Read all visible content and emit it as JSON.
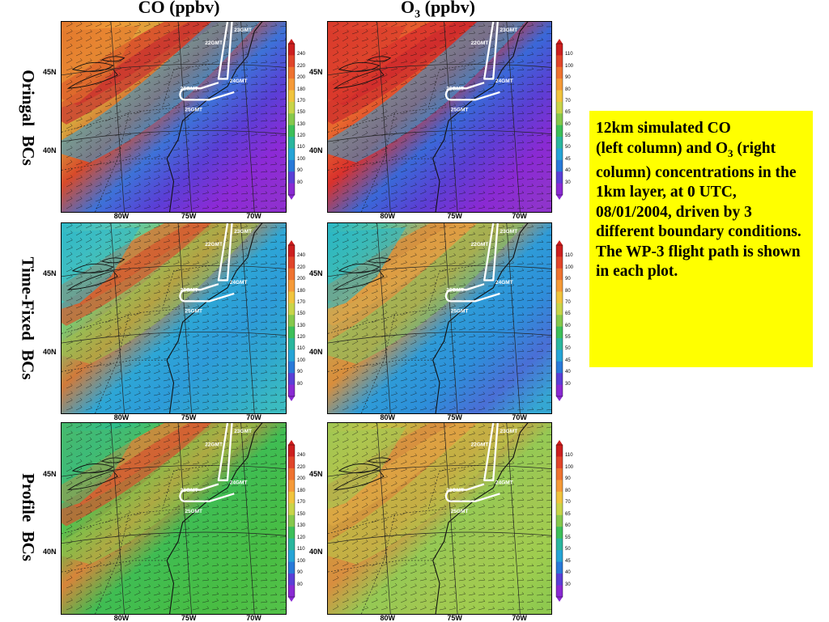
{
  "columns": [
    {
      "label": "CO (ppbv)",
      "species": "CO"
    },
    {
      "label": "O",
      "sub": "3",
      "suffix": " (ppbv)",
      "species": "O3"
    }
  ],
  "rows": [
    {
      "label": "Oringal  BCs",
      "scenario": "original"
    },
    {
      "label": "Time-Fixed  BCs",
      "scenario": "time-fixed"
    },
    {
      "label": "Profile  BCs",
      "scenario": "profile"
    }
  ],
  "axis_labels": {
    "lat": [
      "45N",
      "40N"
    ],
    "lon": [
      "80W",
      "75W",
      "70W"
    ]
  },
  "colorbars": {
    "CO": [
      "240",
      "220",
      "200",
      "180",
      "170",
      "150",
      "130",
      "120",
      "110",
      "100",
      "90",
      "80"
    ],
    "O3": [
      "110",
      "100",
      "90",
      "80",
      "70",
      "65",
      "60",
      "55",
      "50",
      "45",
      "40",
      "30"
    ]
  },
  "flight_labels": [
    "23GMT",
    "22GMT",
    "24GMT",
    "26GMT",
    "25GMT"
  ],
  "caption": {
    "line1": "12km simulated CO",
    "line2_pre": "(left column) and O",
    "line2_sub": "3",
    "rest": "(right column) concentrations in the 1km layer, at 0 UTC, 08/01/2004, driven by 3 different boundary conditions.  The WP-3 flight path is shown in each plot."
  },
  "colors": {
    "caption_bg": "#ffff00",
    "flight_path": "#ffffff"
  }
}
